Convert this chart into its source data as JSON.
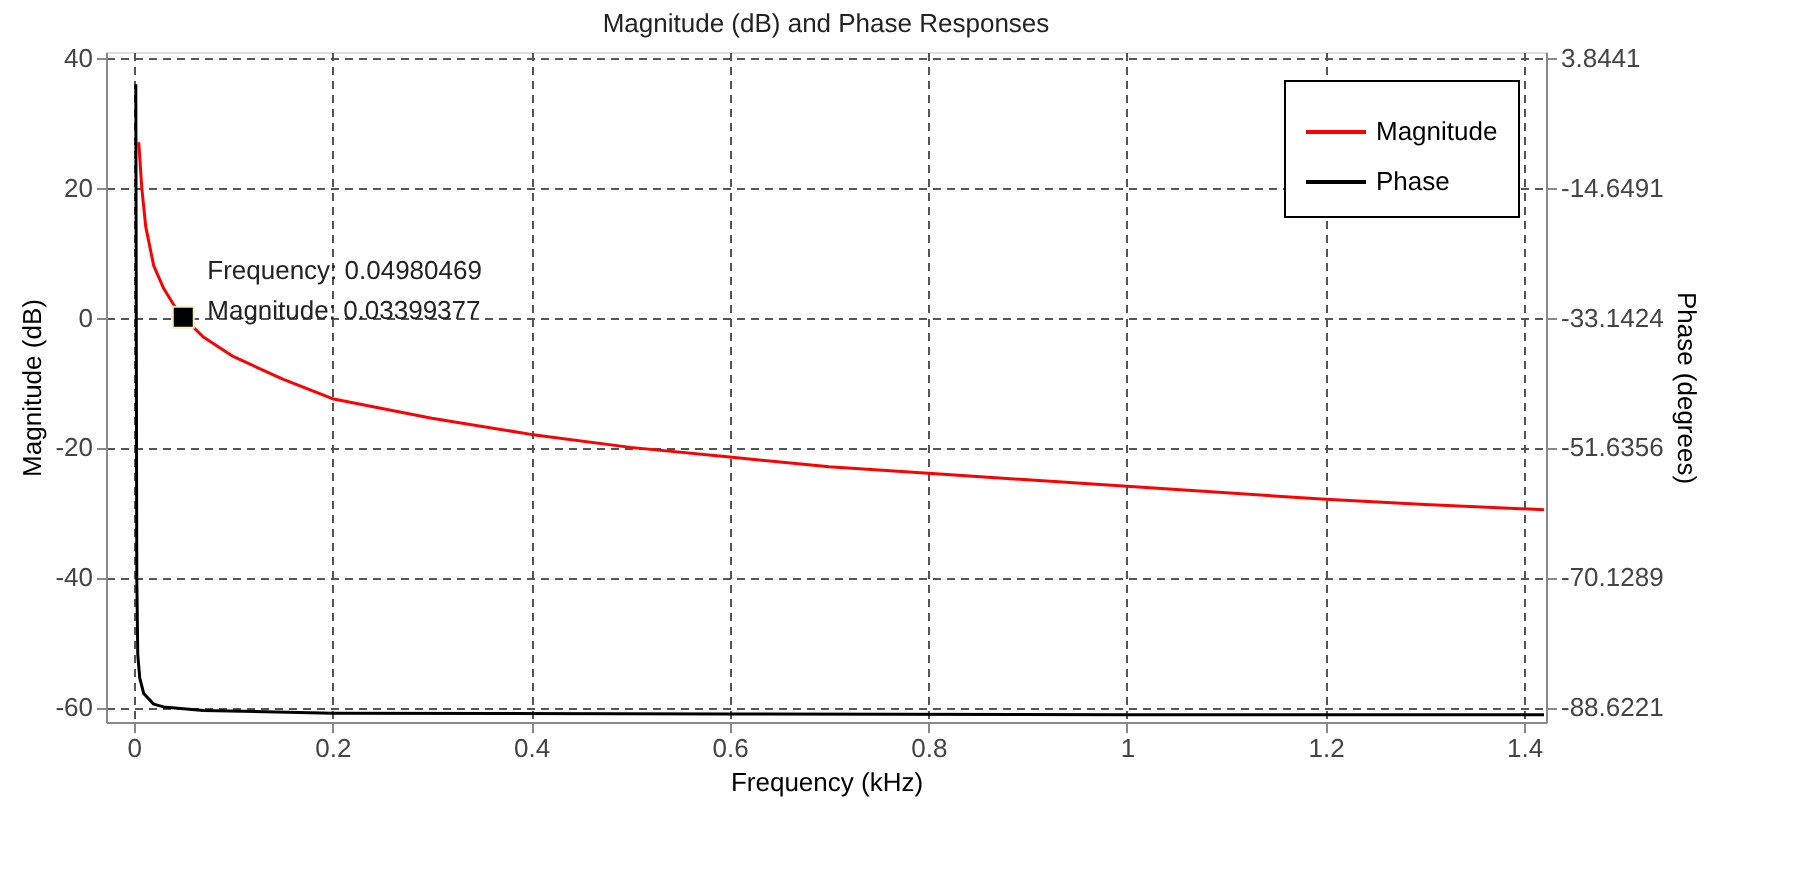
{
  "chart_data": {
    "type": "line",
    "title": "Magnitude (dB) and Phase Responses",
    "xlabel": "Frequency (kHz)",
    "ylabel": "Magnitude (dB)",
    "y2label": "Phase (degrees)",
    "xlim": [
      -0.028,
      1.422
    ],
    "xticks": [
      0,
      0.2,
      0.4,
      0.6,
      0.8,
      1,
      1.2,
      1.4
    ],
    "ylim": [
      -62.3,
      40.9
    ],
    "yticks": [
      -60,
      -40,
      -20,
      0,
      20,
      40
    ],
    "y2lim": [
      -90.749,
      4.676
    ],
    "y2ticks": [
      -88.6221,
      -70.1289,
      -51.6356,
      -33.1424,
      -14.6491,
      3.8441
    ],
    "grid": true,
    "legend": "top right",
    "marker": "none",
    "line_style": "solid",
    "series": [
      {
        "name": "Magnitude",
        "color": "#ff0000",
        "x": [
          0.005,
          0.008,
          0.012,
          0.02,
          0.03,
          0.04,
          0.0498,
          0.07,
          0.1,
          0.15,
          0.2,
          0.3,
          0.4,
          0.5,
          0.6,
          0.7,
          0.8,
          0.9,
          1.0,
          1.1,
          1.2,
          1.3,
          1.42
        ],
        "values": [
          27,
          20,
          14,
          8,
          4.5,
          2,
          0.034,
          -3,
          -6,
          -9.5,
          -12.5,
          -15.5,
          -18,
          -20,
          -21.5,
          -23,
          -24,
          -25,
          -26,
          -27,
          -28,
          -28.8,
          -29.6
        ]
      },
      {
        "name": "Phase",
        "color": "#000000",
        "axis": "y2",
        "x": [
          0.002,
          0.003,
          0.004,
          0.006,
          0.01,
          0.02,
          0.03,
          0.07,
          0.2,
          0.6,
          1.0,
          1.42
        ],
        "values": [
          0.1,
          -70.1,
          -81.2,
          -84.5,
          -86.7,
          -88.2,
          -88.6,
          -89.1,
          -89.5,
          -89.6,
          -89.7,
          -89.7
        ]
      }
    ],
    "annotations": [
      {
        "text": "Frequency: 0.04980469\nMagnitude: 0.03399377",
        "x": 0.0498,
        "y": 0.034
      }
    ]
  }
}
